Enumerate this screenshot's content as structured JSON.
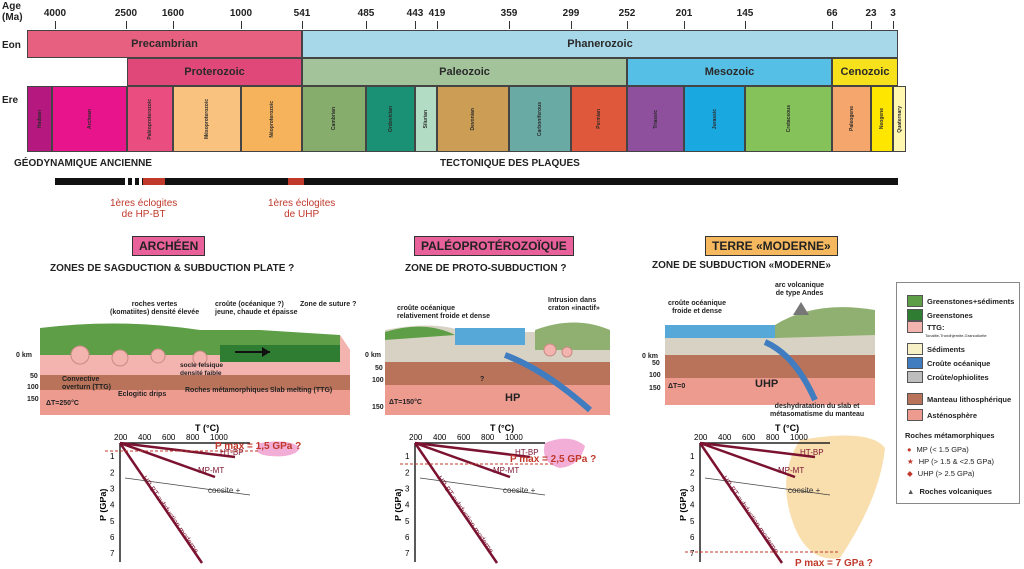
{
  "timescale": {
    "age_label": "Age\n(Ma)",
    "ticks": [
      "4000",
      "2500",
      "1600",
      "1000",
      "541",
      "485",
      "443",
      "419",
      "359",
      "299",
      "252",
      "201",
      "145",
      "66",
      "23",
      "3"
    ],
    "row_labels": {
      "eon": "Eon",
      "era": "Ere"
    },
    "eons": [
      {
        "label": "Precambrian",
        "color": "#e8607f"
      },
      {
        "label": "Phanerozoic",
        "color": "#a6d8ea"
      }
    ],
    "eras_top": [
      {
        "label": "Proterozoic",
        "color": "#e0487a"
      },
      {
        "label": "Paleozoic",
        "color": "#a3c39b"
      },
      {
        "label": "Mesozoic",
        "color": "#55bfe5"
      },
      {
        "label": "Cenozoic",
        "color": "#f6e11c"
      }
    ],
    "periods": [
      {
        "label": "Hadean",
        "color": "#b5197f"
      },
      {
        "label": "Archean",
        "color": "#e8148b"
      },
      {
        "label": "Paléoproterozoic",
        "color": "#ea4d7f"
      },
      {
        "label": "Mésoproterozoic",
        "color": "#f9c27e"
      },
      {
        "label": "Néoproterozoic",
        "color": "#f6b35b"
      },
      {
        "label": "Cambrian",
        "color": "#86ad6b"
      },
      {
        "label": "Ordovician",
        "color": "#1a9175"
      },
      {
        "label": "Silurian",
        "color": "#b3dcc4"
      },
      {
        "label": "Devonian",
        "color": "#cc9d54"
      },
      {
        "label": "Carboniferous",
        "color": "#6aaaa4"
      },
      {
        "label": "Permian",
        "color": "#e0583b"
      },
      {
        "label": "Triassic",
        "color": "#8e4f9c"
      },
      {
        "label": "Jurassic",
        "color": "#1aa8e0"
      },
      {
        "label": "Cretaceous",
        "color": "#85c35a"
      },
      {
        "label": "Paleogene",
        "color": "#f4a66c"
      },
      {
        "label": "Neogene",
        "color": "#ffe600"
      },
      {
        "label": "Quaternary",
        "color": "#fff6b0"
      }
    ]
  },
  "geodynamics": {
    "left_label": "GÉODYNAMIQUE ANCIENNE",
    "right_label": "TECTONIQUE DES PLAQUES",
    "eclogite_hp": "1ères éclogites\nde HP-BT",
    "eclogite_uhp": "1ères éclogites\nde UHP"
  },
  "panels": [
    {
      "badge": "ARCHÉEN",
      "badge_color": "#e8619a",
      "subtitle": "ZONES DE SAGDUCTION & SUBDUCTION PLATE ?",
      "labels": [
        "roches vertes\n(komatiites) densité élevée",
        "croûte (océanique ?)\njeune, chaude et épaisse",
        "Zone de suture ?",
        "socle felsique\ndensité faible",
        "Convective\noverturn (TTG)",
        "Eclogitic drips",
        "Roches métamorphiques",
        "Slab melting (TTG)",
        "ΔT=250°C"
      ],
      "pmax": "P max = 1,5 GPa ?"
    },
    {
      "badge": "PALÉOPROTÉROZOÏQUE",
      "badge_color": "#e8619a",
      "subtitle": "ZONE DE PROTO-SUBDUCTION ?",
      "labels": [
        "croûte océanique\nrelativement froide et dense",
        "Intrusion dans\ncraton «inactif»",
        "HP",
        "ΔT=150°C",
        "?"
      ],
      "pmax": "P max = 2,5 GPa ?"
    },
    {
      "badge": "TERRE «MODERNE»",
      "badge_color": "#f5b85e",
      "subtitle": "ZONE DE SUBDUCTION «MODERNE»",
      "labels": [
        "arc volcanique\nde type Andes",
        "croûte océanique\nfroide et dense",
        "UHP",
        "deshydratation du slab et\nmétasomatisme du manteau",
        "ΔT=0"
      ],
      "pmax": "P max = 7 GPa ?"
    }
  ],
  "depth_ticks": [
    "0 km",
    "50",
    "100",
    "150"
  ],
  "pt": {
    "t_label": "T (°C)",
    "p_label": "P (GPa)",
    "t_ticks": [
      "200",
      "400",
      "600",
      "800",
      "1000"
    ],
    "p_ticks": [
      "1",
      "2",
      "3",
      "4",
      "5",
      "6",
      "7"
    ],
    "facies": [
      "HT-BP",
      "MP-MT",
      "HP-BT subduction moderne",
      "coesite +"
    ]
  },
  "legend": {
    "items": [
      {
        "label": "Greenstones+sédiments",
        "color": "#5e9e47"
      },
      {
        "label": "Greenstones",
        "color": "#2f7d32"
      },
      {
        "label": "TTG:",
        "color": "#f3b3ae"
      },
      {
        "label": "Tonalite-Trondhjemite-Granodiorite",
        "color": ""
      },
      {
        "label": "Sédiments",
        "color": "#f7efc5"
      },
      {
        "label": "Croûte océanique",
        "color": "#3f7cc0"
      },
      {
        "label": "Croûte/ophiolites",
        "color": "#bdbdbd"
      },
      {
        "label": "Manteau lithosphérique",
        "color": "#b9735a"
      },
      {
        "label": "Asténosphère",
        "color": "#ee9b8f"
      }
    ],
    "meta_title": "Roches métamorphiques",
    "meta": [
      "MP (< 1.5 GPa)",
      "HP (> 1.5 & <2.5 GPa)",
      "UHP (> 2.5 GPa)",
      "Roches volcaniques"
    ]
  }
}
